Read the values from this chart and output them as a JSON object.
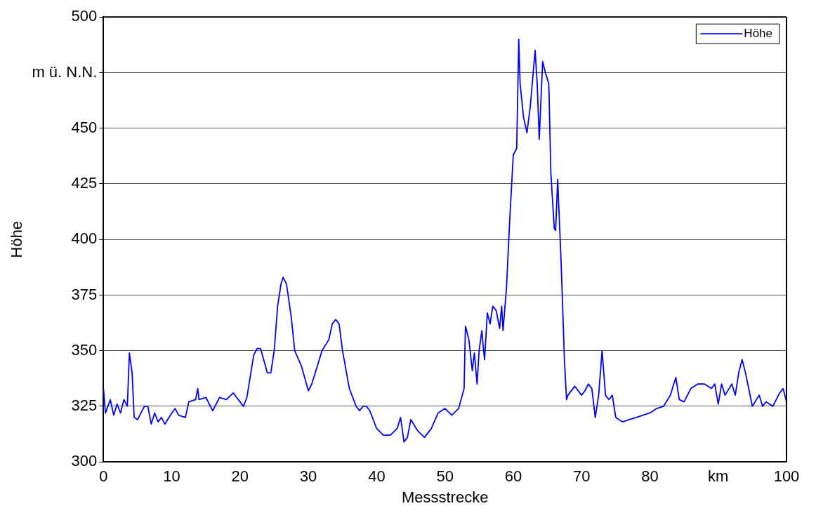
{
  "chart_data": {
    "type": "line",
    "xlabel": "Messstrecke",
    "ylabel": "Höhe",
    "xlim": [
      0,
      100
    ],
    "ylim": [
      300,
      500
    ],
    "xticks": [
      0,
      10,
      20,
      30,
      40,
      50,
      60,
      70,
      80,
      {
        "value": 90,
        "label": "km"
      },
      100
    ],
    "yticks": [
      300,
      325,
      350,
      375,
      400,
      425,
      450,
      {
        "value": 475,
        "label": "m ü. N.N."
      },
      500
    ],
    "grid": "y",
    "legend": "top right",
    "marker": "none",
    "line_style": "solid",
    "x": [
      0,
      0.3,
      1,
      1.5,
      2,
      2.5,
      3,
      3.5,
      3.8,
      4.2,
      4.5,
      5,
      5.5,
      6,
      6.5,
      7,
      7.5,
      8,
      8.5,
      9,
      10,
      10.5,
      11,
      12,
      12.5,
      13.5,
      13.8,
      14,
      15,
      16,
      17,
      18,
      19,
      20,
      20.5,
      21,
      22,
      22.5,
      23,
      24,
      24.5,
      25,
      25.5,
      26,
      26.3,
      26.8,
      27.5,
      28,
      29,
      30,
      30.5,
      31,
      32,
      33,
      33.5,
      34,
      34.5,
      35,
      36,
      37,
      37.5,
      38,
      38.5,
      39,
      40,
      41,
      42,
      43,
      43.5,
      44,
      44.5,
      45,
      46,
      47,
      48,
      49,
      50,
      51,
      52,
      52.8,
      53,
      53.5,
      54,
      54.3,
      54.7,
      55,
      55.4,
      55.6,
      55.8,
      56.2,
      56.6,
      57,
      57.5,
      58,
      58.3,
      58.5,
      59,
      59.5,
      60,
      60.5,
      60.8,
      61,
      61.5,
      62,
      62.5,
      63,
      63.2,
      63.5,
      63.8,
      64.3,
      64.7,
      65.2,
      65.5,
      66,
      66.2,
      66.5,
      67,
      67.5,
      67.8,
      68,
      69,
      70,
      70.5,
      71,
      71.5,
      72,
      72.5,
      73,
      73.5,
      74,
      74.5,
      75,
      76,
      77,
      78,
      79,
      80,
      81,
      82,
      83,
      83.8,
      84.3,
      85,
      86,
      87,
      88,
      89,
      89.5,
      90,
      90.5,
      91,
      92,
      92.5,
      93,
      93.5,
      94,
      95,
      96,
      96.5,
      97,
      98,
      99,
      99.5,
      100
    ],
    "series": [
      {
        "name": "Höhe",
        "color": "#0000ff",
        "values": [
          333,
          322,
          328,
          321,
          326,
          322,
          328,
          325,
          349,
          340,
          320,
          319,
          322,
          325,
          325,
          317,
          322,
          318,
          320,
          317,
          322,
          324,
          321,
          320,
          327,
          328,
          333,
          328,
          329,
          323,
          329,
          328,
          331,
          327,
          325,
          329,
          348,
          351,
          351,
          340,
          340,
          350,
          370,
          380,
          383,
          380,
          365,
          350,
          343,
          332,
          335,
          340,
          350,
          355,
          362,
          364,
          362,
          350,
          333,
          325,
          323,
          325,
          325,
          323,
          315,
          312,
          312,
          315,
          320,
          309,
          311,
          319,
          314,
          311,
          315,
          322,
          324,
          321,
          324,
          333,
          361,
          355,
          341,
          349,
          335,
          350,
          359,
          352,
          346,
          367,
          362,
          370,
          368,
          360,
          370,
          359,
          378,
          410,
          438,
          441,
          490,
          470,
          455,
          448,
          460,
          478,
          485,
          470,
          445,
          480,
          475,
          470,
          430,
          405,
          404,
          427,
          390,
          345,
          328,
          330,
          334,
          330,
          332,
          335,
          333,
          320,
          330,
          350,
          330,
          328,
          330,
          320,
          318,
          319,
          320,
          321,
          322,
          324,
          325,
          330,
          338,
          328,
          327,
          333,
          335,
          335,
          333,
          335,
          326,
          335,
          330,
          335,
          330,
          340,
          346,
          340,
          325,
          330,
          325,
          327,
          325,
          331,
          333,
          327
        ]
      }
    ]
  }
}
